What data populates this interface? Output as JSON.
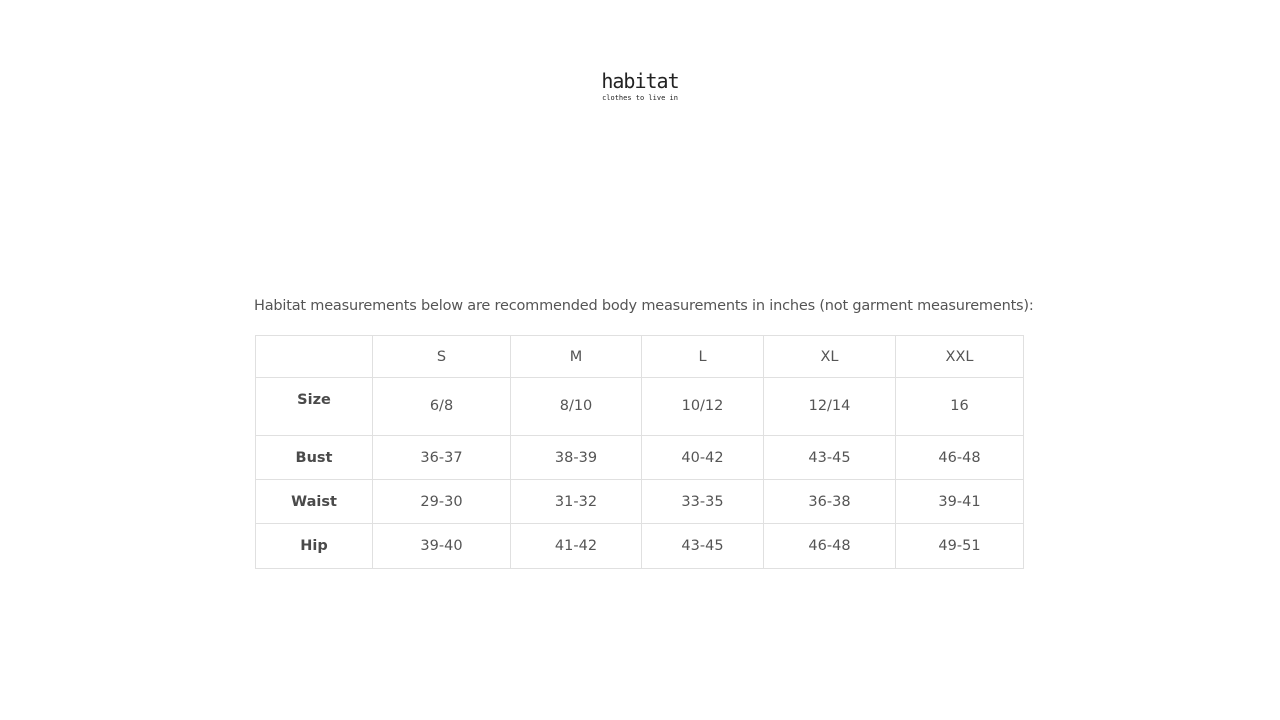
{
  "logo": {
    "word": "habitat",
    "tagline": "clothes to live in"
  },
  "intro": "Habitat measurements below are recommended body measurements in inches (not garment measurements):",
  "table": {
    "headers": [
      "",
      "S",
      "M",
      "L",
      "XL",
      "XXL"
    ],
    "rows": [
      {
        "label": "Size",
        "values": [
          "6/8",
          "8/10",
          "10/12",
          "12/14",
          "16"
        ]
      },
      {
        "label": "Bust",
        "values": [
          "36-37",
          "38-39",
          "40-42",
          "43-45",
          "46-48"
        ]
      },
      {
        "label": "Waist",
        "values": [
          "29-30",
          "31-32",
          "33-35",
          "36-38",
          "39-41"
        ]
      },
      {
        "label": "Hip",
        "values": [
          "39-40",
          "41-42",
          "43-45",
          "46-48",
          "49-51"
        ]
      }
    ]
  }
}
